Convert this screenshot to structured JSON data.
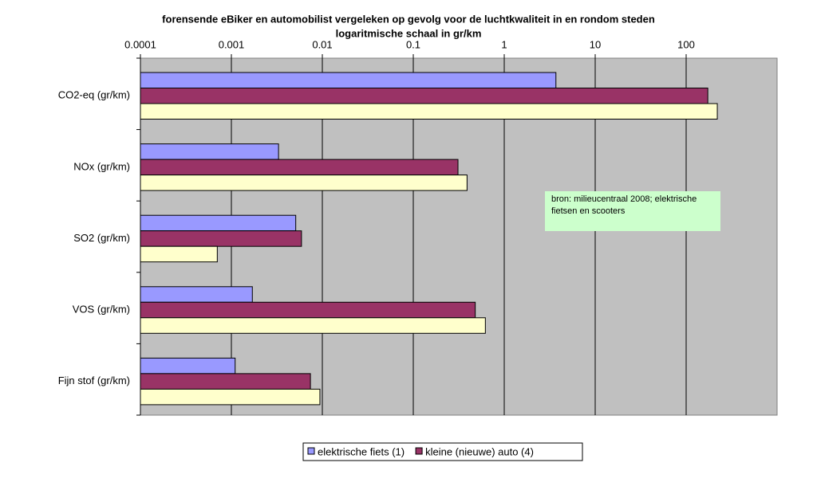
{
  "chart_data": {
    "type": "bar",
    "orientation": "horizontal",
    "title": "forensende eBiker en automobilist vergeleken op gevolg voor de luchtkwaliteit in en rondom steden",
    "x_label": "logaritmische schaal in gr/km",
    "categories": [
      "CO2-eq (gr/km)",
      "NOx (gr/km)",
      "SO2 (gr/km)",
      "VOS (gr/km)",
      "Fijn stof (gr/km)"
    ],
    "series": [
      {
        "name": "elektrische fiets (1)",
        "color": "#9999ff",
        "values": [
          3.7,
          0.0033,
          0.0051,
          0.0017,
          0.0011
        ]
      },
      {
        "name": "kleine (nieuwe) auto (4)",
        "color": "#993366",
        "values": [
          173,
          0.31,
          0.0059,
          0.48,
          0.0074
        ]
      },
      {
        "color": "#ffffcc",
        "values": [
          220,
          0.39,
          0.0007,
          0.62,
          0.0094
        ]
      }
    ],
    "xscale": "log",
    "xlim": [
      0.0001,
      1000
    ],
    "xticks": [
      0.0001,
      0.001,
      0.01,
      0.1,
      1,
      10,
      100
    ],
    "grid": true,
    "plot_background": "#c0c0c0",
    "annotation": "bron: milieucentraal 2008; elektrische fietsen en scooters",
    "legend": "bottom"
  }
}
